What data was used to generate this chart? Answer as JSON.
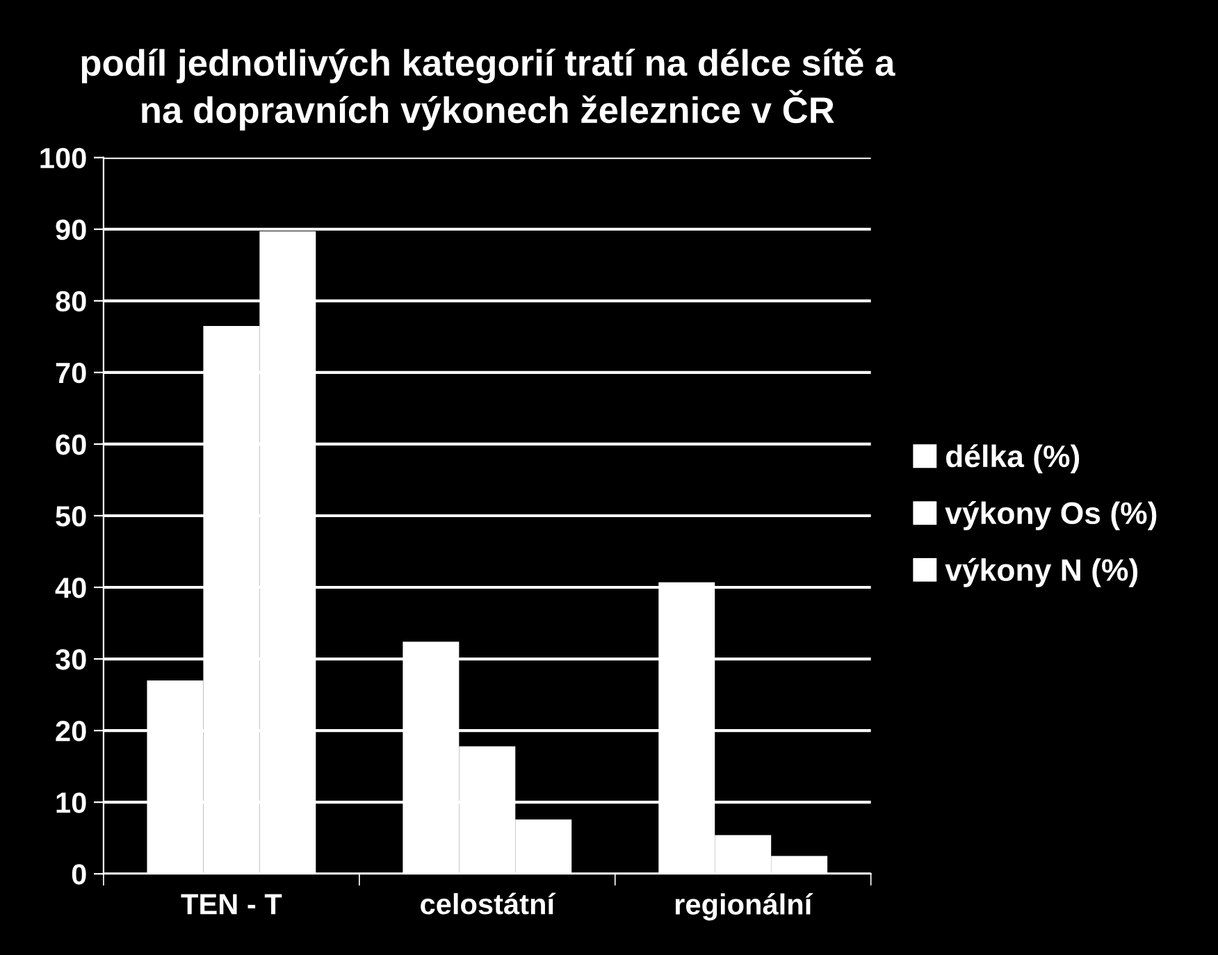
{
  "chart_data": {
    "type": "bar",
    "title": "podíl jednotlivých kategorií tratí na délce sítě a\nna dopravních výkonech železnice v ČR",
    "categories": [
      "TEN - T",
      "celostátní",
      "regionální"
    ],
    "series": [
      {
        "name": "délka (%)",
        "color": "#ffffff",
        "values": [
          27,
          32.4,
          40.7
        ]
      },
      {
        "name": "výkony Os (%)",
        "color": "#ffffff",
        "values": [
          76.5,
          17.8,
          5.4
        ]
      },
      {
        "name": "výkony N (%)",
        "color": "#ffffff",
        "values": [
          89.7,
          7.6,
          2.5
        ]
      }
    ],
    "ylim": [
      0,
      100
    ],
    "yticks": [
      0,
      10,
      20,
      30,
      40,
      50,
      60,
      70,
      80,
      90,
      100
    ],
    "grid": "y",
    "legend": "right"
  }
}
